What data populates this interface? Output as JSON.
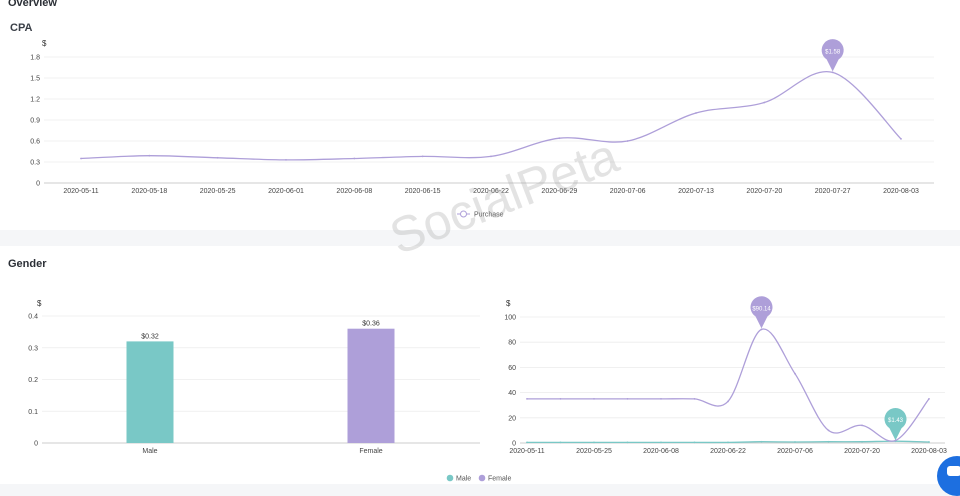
{
  "page": {
    "title": "Overview"
  },
  "watermark": "SocialPeta",
  "sections": {
    "cpa": "CPA",
    "gender": "Gender"
  },
  "colors": {
    "purple": "#ae9fd9",
    "teal": "#79c8c6",
    "accent": "#1d6fe0"
  },
  "icons": {
    "chat": "chat-icon"
  },
  "chart_data": [
    {
      "id": "cpa",
      "type": "line",
      "title": "CPA",
      "ylabel": "$",
      "ylim": [
        0,
        1.8
      ],
      "yticks": [
        0,
        0.3,
        0.6,
        0.9,
        1.2,
        1.5,
        1.8
      ],
      "x": [
        "2020-05-11",
        "2020-05-18",
        "2020-05-25",
        "2020-06-01",
        "2020-06-08",
        "2020-06-15",
        "2020-06-22",
        "2020-06-29",
        "2020-07-06",
        "2020-07-13",
        "2020-07-20",
        "2020-07-27",
        "2020-08-03"
      ],
      "series": [
        {
          "name": "Purchase",
          "color": "#ae9fd9",
          "values": [
            0.35,
            0.39,
            0.36,
            0.33,
            0.35,
            0.38,
            0.38,
            0.64,
            0.6,
            1.0,
            1.15,
            1.58,
            0.63
          ]
        }
      ],
      "annotations": [
        {
          "x": "2020-07-27",
          "label": "$1.58"
        }
      ],
      "legend": "bottom-center"
    },
    {
      "id": "gender-bar",
      "type": "bar",
      "ylabel": "$",
      "ylim": [
        0,
        0.4
      ],
      "yticks": [
        0,
        0.1,
        0.2,
        0.3,
        0.4
      ],
      "categories": [
        "Male",
        "Female"
      ],
      "values": [
        0.32,
        0.36
      ],
      "data_labels": [
        "$0.32",
        "$0.36"
      ],
      "colors": [
        "#79c8c6",
        "#ae9fd9"
      ]
    },
    {
      "id": "gender-line",
      "type": "line",
      "ylabel": "$",
      "ylim": [
        0,
        100
      ],
      "yticks": [
        0,
        20,
        40,
        60,
        80,
        100
      ],
      "xticks": [
        "2020-05-11",
        "2020-05-25",
        "2020-06-08",
        "2020-06-22",
        "2020-07-06",
        "2020-07-20",
        "2020-08-03"
      ],
      "x": [
        "2020-05-11",
        "2020-05-18",
        "2020-05-25",
        "2020-06-01",
        "2020-06-08",
        "2020-06-15",
        "2020-06-22",
        "2020-06-29",
        "2020-07-06",
        "2020-07-13",
        "2020-07-20",
        "2020-07-27",
        "2020-08-03"
      ],
      "series": [
        {
          "name": "Male",
          "color": "#79c8c6",
          "values": [
            0.5,
            0.5,
            0.5,
            0.5,
            0.5,
            0.5,
            0.5,
            1.0,
            0.8,
            1.0,
            1.0,
            1.43,
            0.8
          ]
        },
        {
          "name": "Female",
          "color": "#ae9fd9",
          "values": [
            35,
            35,
            35,
            35,
            35,
            35,
            33,
            90.14,
            55,
            10,
            14,
            2,
            35
          ]
        }
      ],
      "annotations": [
        {
          "series": "Female",
          "x": "2020-06-29",
          "label": "$90.14"
        },
        {
          "series": "Male",
          "x": "2020-07-27",
          "label": "$1.43"
        }
      ],
      "legend": "bottom-center",
      "legend_entries": [
        "Male",
        "Female"
      ]
    }
  ]
}
